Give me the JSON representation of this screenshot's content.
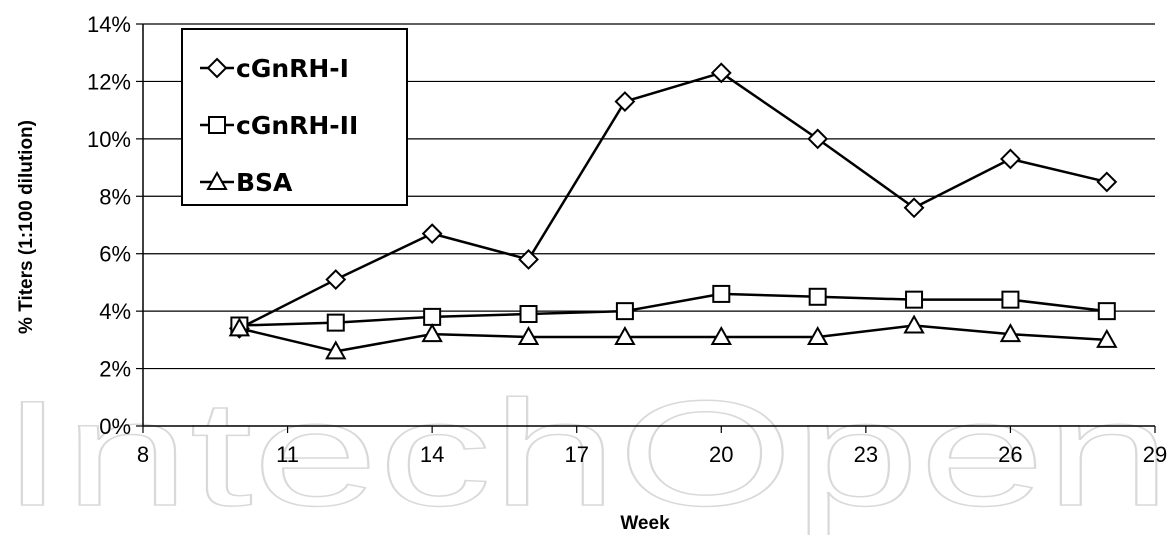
{
  "chart_data": {
    "type": "line",
    "xlabel": "Week",
    "ylabel": "% Titers (1:100 dilution)",
    "xlim": [
      8,
      29
    ],
    "ylim": [
      0,
      14
    ],
    "x_ticks": [
      "8",
      "11",
      "14",
      "17",
      "20",
      "23",
      "26",
      "29"
    ],
    "y_ticks": [
      "0%",
      "2%",
      "4%",
      "6%",
      "8%",
      "10%",
      "12%",
      "14%"
    ],
    "grid": true,
    "legend_position": "top-left",
    "series": [
      {
        "name": "cGnRH-I",
        "marker": "diamond",
        "color": "#000000",
        "x": [
          10,
          12,
          14,
          16,
          18,
          20,
          22,
          24,
          26,
          28
        ],
        "y": [
          3.4,
          5.1,
          6.7,
          5.8,
          11.3,
          12.3,
          10.0,
          7.6,
          9.3,
          8.5
        ]
      },
      {
        "name": "cGnRH-II",
        "marker": "square",
        "color": "#000000",
        "x": [
          10,
          12,
          14,
          16,
          18,
          20,
          22,
          24,
          26,
          28
        ],
        "y": [
          3.5,
          3.6,
          3.8,
          3.9,
          4.0,
          4.6,
          4.5,
          4.4,
          4.4,
          4.0
        ]
      },
      {
        "name": "BSA",
        "marker": "triangle",
        "color": "#000000",
        "x": [
          10,
          12,
          14,
          16,
          18,
          20,
          22,
          24,
          26,
          28
        ],
        "y": [
          3.4,
          2.6,
          3.2,
          3.1,
          3.1,
          3.1,
          3.1,
          3.5,
          3.2,
          3.0
        ]
      }
    ]
  },
  "watermark": {
    "text": "IntechOpen"
  }
}
